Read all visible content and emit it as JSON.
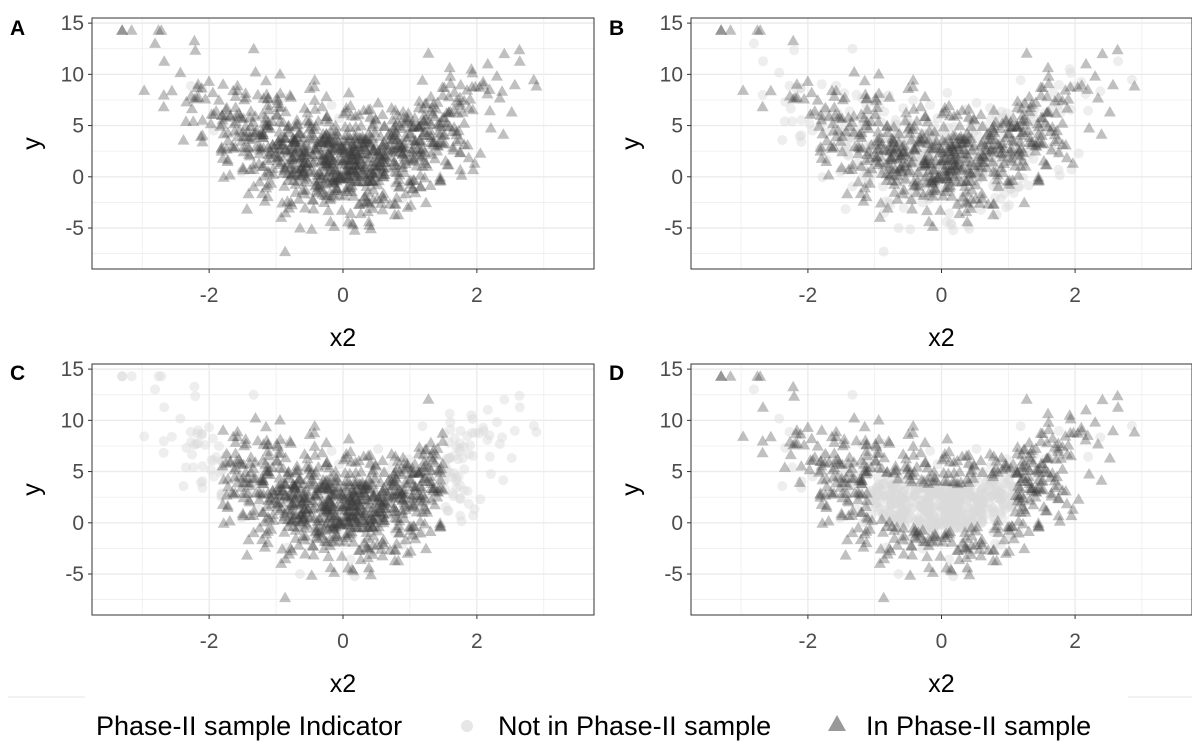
{
  "legend": {
    "title": "Phase-II sample Indicator",
    "items": [
      {
        "label": "Not in Phase-II sample",
        "shape": "circle",
        "color": "#dcdcdc"
      },
      {
        "label": "In Phase-II sample",
        "shape": "triangle",
        "color": "#7f7f7f"
      }
    ]
  },
  "colors": {
    "not_in_sample": "#d9d9d9",
    "in_sample": "#3a3a3a",
    "grid": "#ebebeb",
    "panel_border": "#333333"
  },
  "chart_data": [
    {
      "panel": "A",
      "type": "scatter",
      "xlabel": "x2",
      "ylabel": "y",
      "xlim": [
        -3.75,
        3.75
      ],
      "ylim": [
        -9,
        15.5
      ],
      "xticks": [
        -2,
        0,
        2
      ],
      "yticks": [
        -5,
        0,
        5,
        10,
        15
      ],
      "grid": true,
      "phase2_selection": "nearly all points"
    },
    {
      "panel": "B",
      "type": "scatter",
      "xlabel": "x2",
      "ylabel": "y",
      "xlim": [
        -3.75,
        3.75
      ],
      "ylim": [
        -9,
        15.5
      ],
      "xticks": [
        -2,
        0,
        2
      ],
      "yticks": [
        -5,
        0,
        5,
        10,
        15
      ],
      "grid": true,
      "phase2_selection": "random subsample"
    },
    {
      "panel": "C",
      "type": "scatter",
      "xlabel": "x2",
      "ylabel": "y",
      "xlim": [
        -3.75,
        3.75
      ],
      "ylim": [
        -9,
        15.5
      ],
      "xticks": [
        -2,
        0,
        2
      ],
      "yticks": [
        -5,
        0,
        5,
        10,
        15
      ],
      "grid": true,
      "phase2_selection": "central x2 range (-1.8 to 1.5)"
    },
    {
      "panel": "D",
      "type": "scatter",
      "xlabel": "x2",
      "ylabel": "y",
      "xlim": [
        -3.75,
        3.75
      ],
      "ylim": [
        -9,
        15.5
      ],
      "xticks": [
        -2,
        0,
        2
      ],
      "yticks": [
        -5,
        0,
        5,
        10,
        15
      ],
      "grid": true,
      "phase2_selection": "extremes of residual / tails"
    }
  ]
}
